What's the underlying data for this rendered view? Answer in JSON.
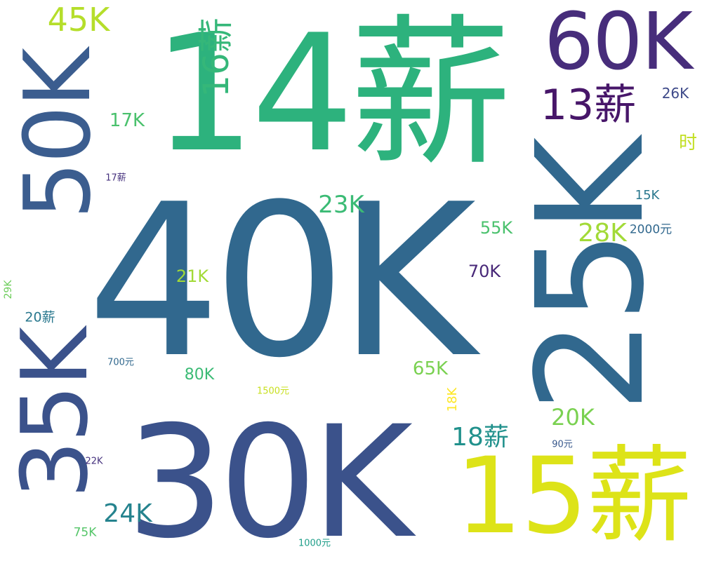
{
  "words": {
    "w40k": {
      "text": "40K",
      "color": "#31688e"
    },
    "w14xin": {
      "text": "14薪",
      "color": "#2db27d"
    },
    "w30k": {
      "text": "30K",
      "color": "#3b528b"
    },
    "w25k": {
      "text": "25K",
      "color": "#31688e"
    },
    "w15xin": {
      "text": "15薪",
      "color": "#dde318"
    },
    "w60k": {
      "text": "60K",
      "color": "#472d7b"
    },
    "w50k": {
      "text": "50K",
      "color": "#3b5d8f"
    },
    "w35k": {
      "text": "35K",
      "color": "#3b528b"
    },
    "w13xin": {
      "text": "13薪",
      "color": "#471669"
    },
    "w45k": {
      "text": "45K",
      "color": "#b5de2b"
    },
    "w16xin": {
      "text": "16薪",
      "color": "#35b779"
    },
    "w23k": {
      "text": "23K",
      "color": "#3bbb75"
    },
    "w28k": {
      "text": "28K",
      "color": "#a2da37"
    },
    "w24k": {
      "text": "24K",
      "color": "#25838e"
    },
    "w18xin": {
      "text": "18薪",
      "color": "#21918c"
    },
    "w20k": {
      "text": "20K",
      "color": "#7ad151"
    },
    "w17k": {
      "text": "17K",
      "color": "#4ac16d"
    },
    "w55k": {
      "text": "55K",
      "color": "#4ac16d"
    },
    "w21k": {
      "text": "21K",
      "color": "#a2da37"
    },
    "w70k": {
      "text": "70K",
      "color": "#482878"
    },
    "w65k": {
      "text": "65K",
      "color": "#7ad151"
    },
    "w80k": {
      "text": "80K",
      "color": "#3bbb75"
    },
    "w26k": {
      "text": "26K",
      "color": "#3e4a89"
    },
    "wshi": {
      "text": "时",
      "color": "#c2df23"
    },
    "w15k": {
      "text": "15K",
      "color": "#2a788e"
    },
    "w2000yuan": {
      "text": "2000元",
      "color": "#31688e"
    },
    "w20xin": {
      "text": "20薪",
      "color": "#2a788e"
    },
    "w17xin": {
      "text": "17薪",
      "color": "#46327e"
    },
    "w29k": {
      "text": "29K",
      "color": "#6ccd5a"
    },
    "w700yuan": {
      "text": "700元",
      "color": "#31688e"
    },
    "w1500yuan": {
      "text": "1500元",
      "color": "#c8e020"
    },
    "w18k": {
      "text": "18K",
      "color": "#fde725"
    },
    "w90yuan": {
      "text": "90元",
      "color": "#38588c"
    },
    "w22k": {
      "text": "22K",
      "color": "#46327e"
    },
    "w75k": {
      "text": "75K",
      "color": "#54c568"
    },
    "w1000yuan": {
      "text": "1000元",
      "color": "#1f9e89"
    }
  }
}
